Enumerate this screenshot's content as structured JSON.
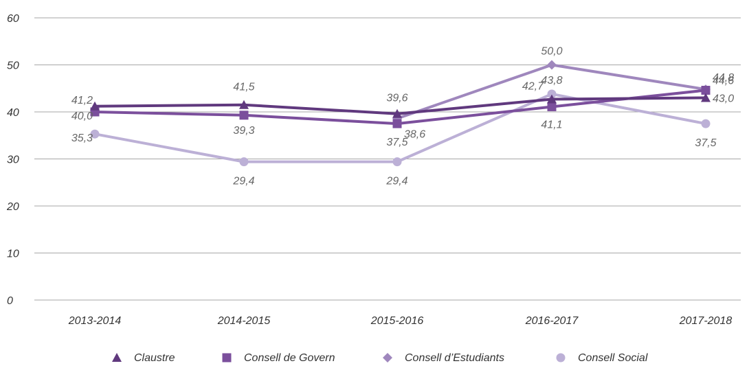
{
  "chart_data": {
    "type": "line",
    "categories": [
      "2013-2014",
      "2014-2015",
      "2015-2016",
      "2016-2017",
      "2017-2018"
    ],
    "ylim": [
      0,
      60
    ],
    "yticks": [
      0,
      10,
      20,
      30,
      40,
      50,
      60
    ],
    "ytick_labels": [
      "0",
      "10",
      "20",
      "30",
      "40",
      "50",
      "60"
    ],
    "grid": true,
    "legend_position": "bottom",
    "series": [
      {
        "name": "Claustre",
        "marker": "triangle",
        "color": "#60397e",
        "values": [
          41.2,
          41.5,
          39.6,
          42.7,
          43.0
        ],
        "labels": [
          "41,2",
          "41,5",
          "39,6",
          "42,7",
          "43,0"
        ]
      },
      {
        "name": "Consell de Govern",
        "marker": "square",
        "color": "#7b4f9c",
        "values": [
          40.0,
          39.3,
          37.5,
          41.1,
          44.6
        ],
        "labels": [
          "40,0",
          "39,3",
          "37,5",
          "41,1",
          "44,6"
        ]
      },
      {
        "name": "Consell d’Estudiants",
        "marker": "diamond",
        "color": "#9f87bd",
        "values": [
          null,
          null,
          38.6,
          50.0,
          44.8
        ],
        "labels": [
          "",
          "",
          "38,6",
          "50,0",
          "44,8"
        ]
      },
      {
        "name": "Consell Social",
        "marker": "circle",
        "color": "#bcb0d6",
        "values": [
          35.3,
          29.4,
          29.4,
          43.8,
          37.5
        ],
        "labels": [
          "35,3",
          "29,4",
          "29,4",
          "43,8",
          "37,5"
        ]
      }
    ]
  }
}
